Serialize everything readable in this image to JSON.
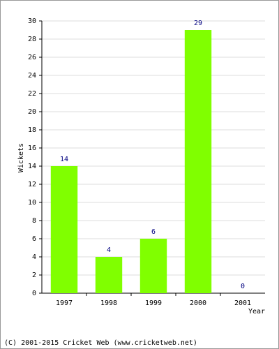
{
  "chart_data": {
    "type": "bar",
    "x_label": "Year",
    "y_label": "Wickets",
    "categories": [
      "1997",
      "1998",
      "1999",
      "2000",
      "2001"
    ],
    "values": [
      14,
      4,
      6,
      29,
      0
    ],
    "color": "#80ff00",
    "label_color": "#000080",
    "ylim": [
      0,
      30
    ],
    "yticks": [
      0,
      2,
      4,
      6,
      8,
      10,
      12,
      14,
      16,
      18,
      20,
      22,
      24,
      26,
      28,
      30
    ],
    "grid": true
  },
  "footer": "(C) 2001-2015 Cricket Web (www.cricketweb.net)"
}
